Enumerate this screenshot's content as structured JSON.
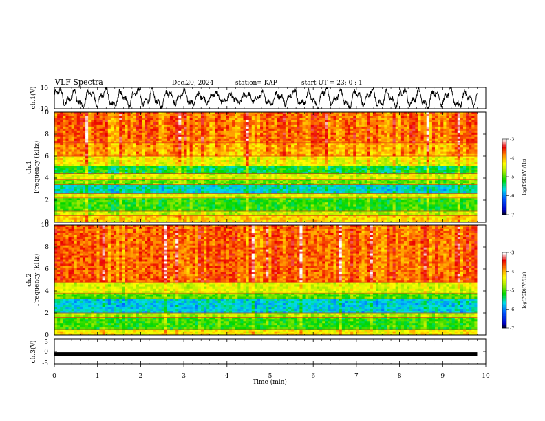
{
  "header": {
    "title": "VLF Spectra",
    "date": "Dec.20, 2024",
    "station": "station= KAP",
    "start": "start  UT  =   23: 0  : 1"
  },
  "chart_data": [
    {
      "type": "line",
      "panel": "ch1-waveform",
      "ylabel": "ch.1(V)",
      "ylim": [
        -10,
        10
      ],
      "yticks": [
        "10",
        "-10"
      ],
      "xlim": [
        0,
        10
      ],
      "xrange_data": [
        0,
        9.8
      ]
    },
    {
      "type": "heatmap",
      "panel": "ch1-spectrogram",
      "ylabel_1": "ch.1",
      "ylabel_2": "Frequency  (kHz)",
      "ylim": [
        0,
        10
      ],
      "yticks": [
        "0",
        "2",
        "4",
        "6",
        "8",
        "10"
      ],
      "xlim": [
        0,
        10
      ],
      "xrange_data": [
        0,
        9.8
      ],
      "bands": [
        {
          "f0": 0.0,
          "f1": 0.6,
          "level": -4.2
        },
        {
          "f0": 0.6,
          "f1": 1.0,
          "level": -4.6
        },
        {
          "f0": 1.0,
          "f1": 2.2,
          "level": -5.1
        },
        {
          "f0": 2.2,
          "f1": 2.6,
          "level": -4.5
        },
        {
          "f0": 2.6,
          "f1": 3.4,
          "level": -5.6
        },
        {
          "f0": 3.4,
          "f1": 3.9,
          "level": -4.9
        },
        {
          "f0": 3.9,
          "f1": 4.4,
          "level": -4.5
        },
        {
          "f0": 4.4,
          "f1": 5.1,
          "level": -5.3
        },
        {
          "f0": 5.1,
          "f1": 6.0,
          "level": -4.4
        },
        {
          "f0": 6.0,
          "f1": 7.2,
          "level": -4.0
        },
        {
          "f0": 7.2,
          "f1": 10.0,
          "level": -3.8
        }
      ],
      "colorbar": {
        "label": "log(PSD)(V²/Hz)",
        "range": [
          -7,
          -3
        ],
        "ticks": [
          "-3",
          "-4",
          "-5",
          "-6",
          "-7"
        ]
      }
    },
    {
      "type": "heatmap",
      "panel": "ch2-spectrogram",
      "ylabel_1": "ch.2",
      "ylabel_2": "Frequency  (kHz)",
      "ylim": [
        0,
        10
      ],
      "yticks": [
        "0",
        "2",
        "4",
        "6",
        "8",
        "10"
      ],
      "xlim": [
        0,
        10
      ],
      "xrange_data": [
        0,
        9.8
      ],
      "bands": [
        {
          "f0": 0.0,
          "f1": 0.5,
          "level": -4.3
        },
        {
          "f0": 0.5,
          "f1": 1.6,
          "level": -5.1
        },
        {
          "f0": 1.6,
          "f1": 2.0,
          "level": -4.7
        },
        {
          "f0": 2.0,
          "f1": 3.3,
          "level": -5.7
        },
        {
          "f0": 3.3,
          "f1": 3.8,
          "level": -5.0
        },
        {
          "f0": 3.8,
          "f1": 4.8,
          "level": -4.5
        },
        {
          "f0": 4.8,
          "f1": 10.0,
          "level": -3.8
        }
      ],
      "colorbar": {
        "label": "log(PSD)(V²/Hz)",
        "range": [
          -7,
          -3
        ],
        "ticks": [
          "-3",
          "-4",
          "-5",
          "-6",
          "-7"
        ]
      }
    },
    {
      "type": "line",
      "panel": "ch3-signal",
      "ylabel": "ch.3(V)",
      "ylim": [
        -5,
        5
      ],
      "yticks": [
        "5",
        "0",
        "-5"
      ],
      "level": -1.0,
      "xlim": [
        0,
        10
      ],
      "xrange_data": [
        0,
        9.8
      ],
      "xlabel": "Time  (min)",
      "xticks": [
        "0",
        "1",
        "2",
        "3",
        "4",
        "5",
        "6",
        "7",
        "8",
        "9",
        "10"
      ]
    }
  ]
}
